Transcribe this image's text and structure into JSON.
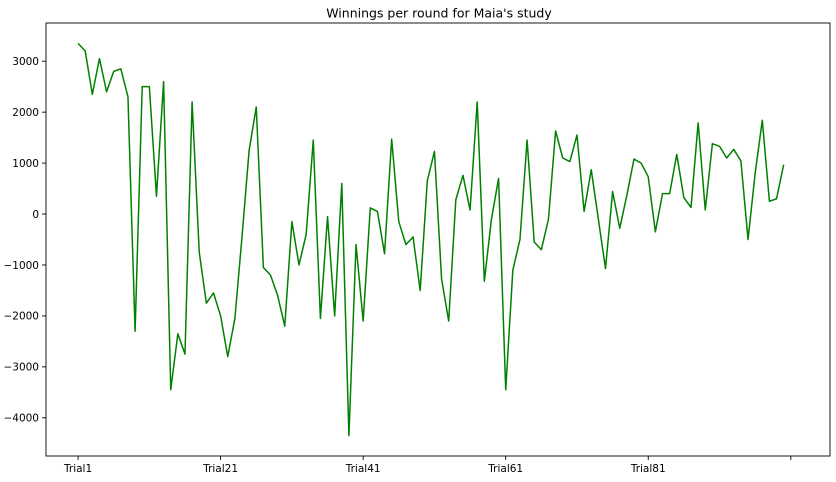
{
  "chart_data": {
    "type": "line",
    "title": "Winnings per round for Maia's study",
    "xlabel": "",
    "ylabel": "",
    "x_tick_labels": [
      "Trial1",
      "Trial21",
      "Trial41",
      "Trial61",
      "Trial81",
      ""
    ],
    "x_tick_positions": [
      1,
      21,
      41,
      61,
      81,
      101
    ],
    "xlim": [
      -3.5,
      106.5
    ],
    "ylim": [
      -4750,
      3750
    ],
    "y_ticks": [
      -4000,
      -3000,
      -2000,
      -1000,
      0,
      1000,
      2000,
      3000
    ],
    "grid": false,
    "line_color": "#008000",
    "series": [
      {
        "name": "",
        "x": [
          1,
          2,
          3,
          4,
          5,
          6,
          7,
          8,
          9,
          10,
          11,
          12,
          13,
          14,
          15,
          16,
          17,
          18,
          19,
          20,
          21,
          22,
          23,
          24,
          25,
          26,
          27,
          28,
          29,
          30,
          31,
          32,
          33,
          34,
          35,
          36,
          37,
          38,
          39,
          40,
          41,
          42,
          43,
          44,
          45,
          46,
          47,
          48,
          49,
          50,
          51,
          52,
          53,
          54,
          55,
          56,
          57,
          58,
          59,
          60,
          61,
          62,
          63,
          64,
          65,
          66,
          67,
          68,
          69,
          70,
          71,
          72,
          73,
          74,
          75,
          76,
          77,
          78,
          79,
          80,
          81,
          82,
          83,
          84,
          85,
          86,
          87,
          88,
          89,
          90,
          91,
          92,
          93,
          94,
          95,
          96,
          97,
          98,
          99,
          100
        ],
        "values": [
          3350,
          3200,
          2350,
          3050,
          2400,
          2800,
          2850,
          2300,
          -2300,
          2500,
          2500,
          350,
          2600,
          -3450,
          -2350,
          -2750,
          2200,
          -750,
          -1750,
          -1550,
          -2000,
          -2800,
          -2050,
          -450,
          1250,
          2100,
          -1050,
          -1200,
          -1600,
          -2200,
          -150,
          -1000,
          -400,
          1450,
          -2050,
          -50,
          -2000,
          600,
          -4350,
          -600,
          -2100,
          120,
          50,
          -780,
          1470,
          -150,
          -600,
          -450,
          -1500,
          650,
          1230,
          -1270,
          -2100,
          280,
          760,
          80,
          2200,
          -1320,
          -100,
          700,
          -3450,
          -1100,
          -500,
          1450,
          -550,
          -700,
          -100,
          1630,
          1100,
          1030,
          1550,
          50,
          870,
          -100,
          -1070,
          440,
          -280,
          370,
          1080,
          1000,
          730,
          -350,
          400,
          400,
          1170,
          320,
          130,
          1790,
          80,
          1380,
          1330,
          1100,
          1270,
          1040,
          -500,
          800,
          1840,
          250,
          300,
          970
        ]
      }
    ]
  }
}
